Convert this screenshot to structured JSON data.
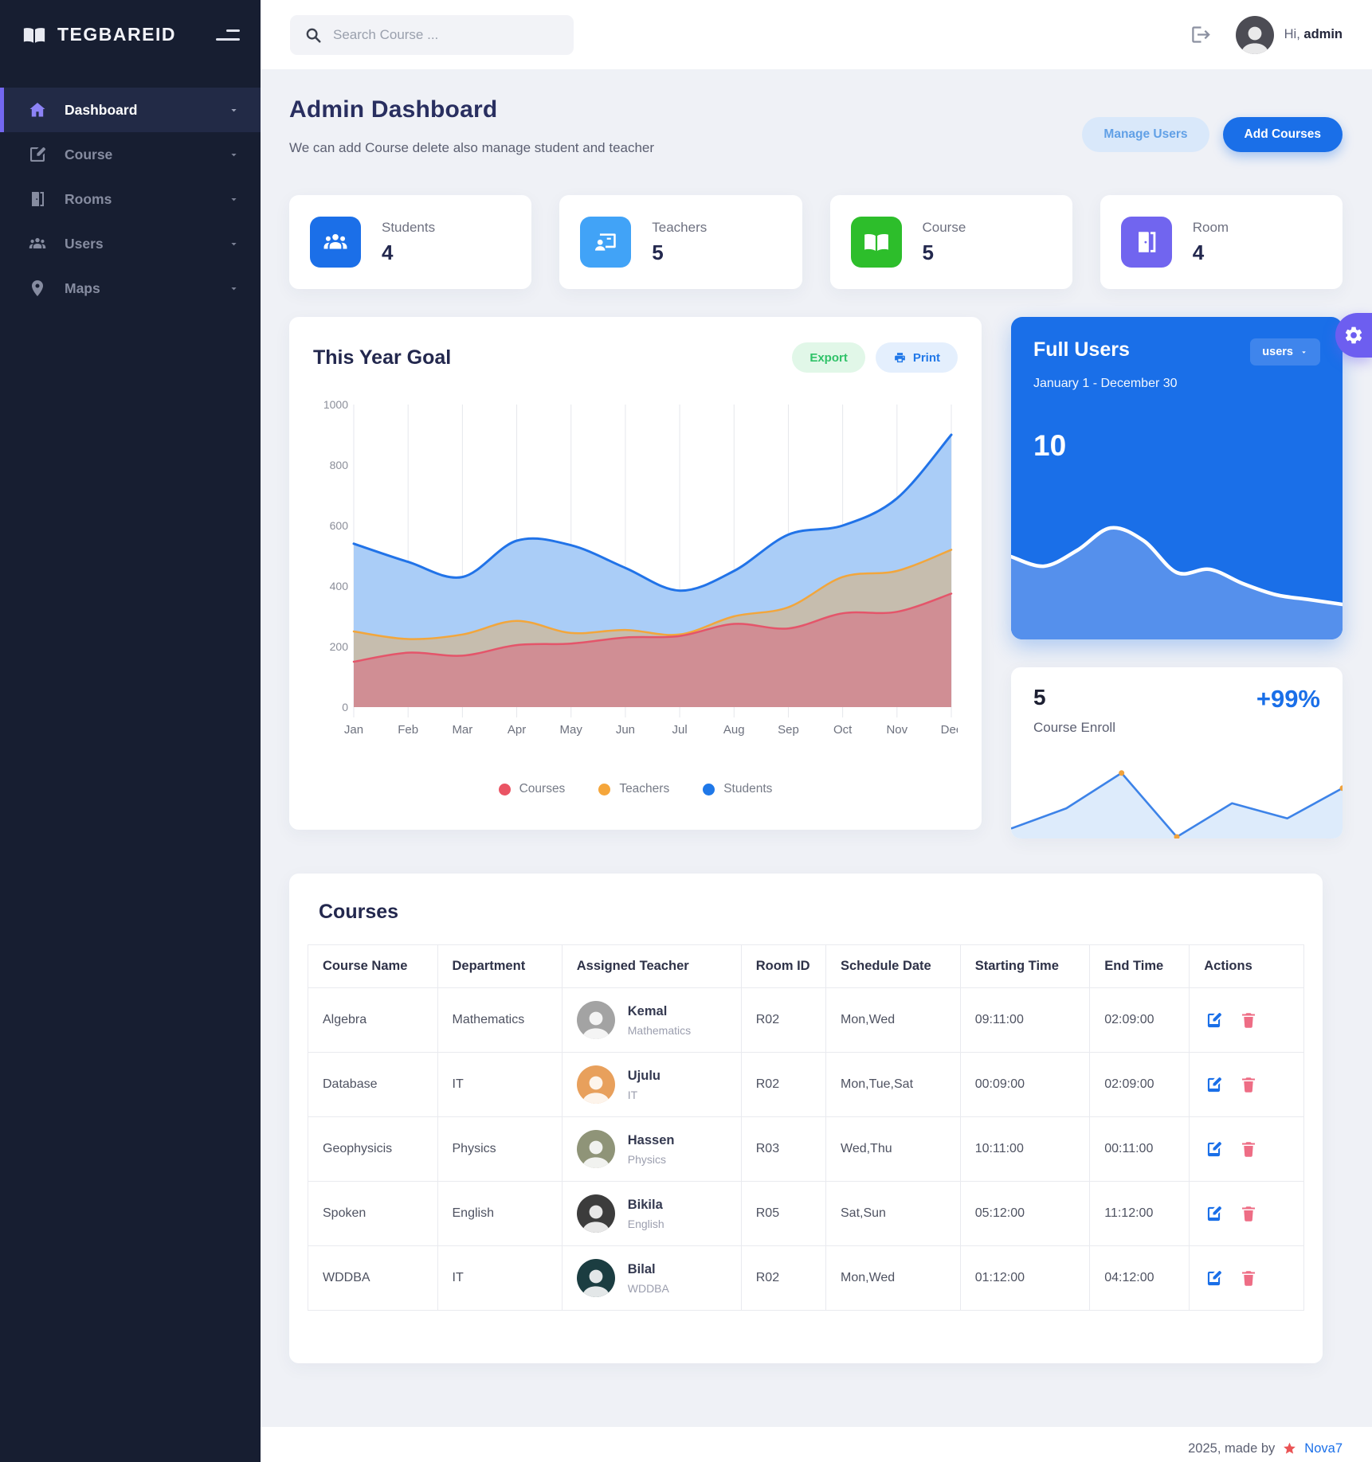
{
  "brand": {
    "name": "TEGBAREID"
  },
  "topbar": {
    "search_placeholder": "Search Course ...",
    "greeting_prefix": "Hi,",
    "username": "admin"
  },
  "sidebar": {
    "items": [
      {
        "label": "Dashboard",
        "icon": "home",
        "active": true
      },
      {
        "label": "Course",
        "icon": "pencil-square",
        "active": false
      },
      {
        "label": "Rooms",
        "icon": "door",
        "active": false
      },
      {
        "label": "Users",
        "icon": "users",
        "active": false
      },
      {
        "label": "Maps",
        "icon": "map-pin",
        "active": false
      }
    ]
  },
  "page": {
    "title": "Admin Dashboard",
    "subtitle": "We can add Course delete also manage student and teacher"
  },
  "actions": {
    "manage_users": "Manage Users",
    "add_courses": "Add Courses"
  },
  "stats": [
    {
      "label": "Students",
      "value": "4",
      "icon": "students",
      "color": "#1b6fe8"
    },
    {
      "label": "Teachers",
      "value": "5",
      "icon": "teacher-board",
      "color": "#41a3f7"
    },
    {
      "label": "Course",
      "value": "5",
      "icon": "book-open",
      "color": "#2dbe2b"
    },
    {
      "label": "Room",
      "value": "4",
      "icon": "door",
      "color": "#7165ef"
    }
  ],
  "goal_card": {
    "title": "This Year Goal",
    "export_label": "Export",
    "print_label": "Print"
  },
  "full_users_card": {
    "title": "Full Users",
    "dropdown_label": "users",
    "date_range": "January 1 - December 30",
    "value": "10"
  },
  "enroll_card": {
    "value": "5",
    "percent": "+99%",
    "label": "Course Enroll"
  },
  "courses_card": {
    "title": "Courses",
    "columns": [
      "Course Name",
      "Department",
      "Assigned Teacher",
      "Room ID",
      "Schedule Date",
      "Starting Time",
      "End Time",
      "Actions"
    ],
    "rows": [
      {
        "course": "Algebra",
        "department": "Mathematics",
        "teacher": {
          "name": "Kemal",
          "dept": "Mathematics",
          "avatar_color": "#a3a3a3"
        },
        "room": "R02",
        "schedule": "Mon,Wed",
        "start": "09:11:00",
        "end": "02:09:00"
      },
      {
        "course": "Database",
        "department": "IT",
        "teacher": {
          "name": "Ujulu",
          "dept": "IT",
          "avatar_color": "#e8a05c"
        },
        "room": "R02",
        "schedule": "Mon,Tue,Sat",
        "start": "00:09:00",
        "end": "02:09:00"
      },
      {
        "course": "Geophysicis",
        "department": "Physics",
        "teacher": {
          "name": "Hassen",
          "dept": "Physics",
          "avatar_color": "#8f9478"
        },
        "room": "R03",
        "schedule": "Wed,Thu",
        "start": "10:11:00",
        "end": "00:11:00"
      },
      {
        "course": "Spoken",
        "department": "English",
        "teacher": {
          "name": "Bikila",
          "dept": "English",
          "avatar_color": "#3c3c3c"
        },
        "room": "R05",
        "schedule": "Sat,Sun",
        "start": "05:12:00",
        "end": "11:12:00"
      },
      {
        "course": "WDDBA",
        "department": "IT",
        "teacher": {
          "name": "Bilal",
          "dept": "WDDBA",
          "avatar_color": "#1b3d41"
        },
        "room": "R02",
        "schedule": "Mon,Wed",
        "start": "01:12:00",
        "end": "04:12:00"
      }
    ]
  },
  "footer": {
    "text": "2025, made by",
    "brand": "Nova7"
  },
  "chart_data": [
    {
      "id": "this-year-goal",
      "type": "area",
      "title": "This Year Goal",
      "x": [
        "Jan",
        "Feb",
        "Mar",
        "Apr",
        "May",
        "Jun",
        "Jul",
        "Aug",
        "Sep",
        "Oct",
        "Nov",
        "Dec"
      ],
      "ylim": [
        0,
        1000
      ],
      "yticks": [
        0,
        200,
        400,
        600,
        800,
        1000
      ],
      "grid": "vertical-only",
      "legend_position": "bottom",
      "series": [
        {
          "name": "Courses",
          "line_color": "#e4556a",
          "fill_color": "#d08e94",
          "values": [
            150,
            180,
            170,
            205,
            210,
            230,
            235,
            275,
            260,
            310,
            315,
            375
          ]
        },
        {
          "name": "Teachers",
          "line_color": "#f2a63c",
          "fill_color": "#c6bdae",
          "values": [
            250,
            225,
            240,
            285,
            245,
            255,
            240,
            300,
            330,
            430,
            450,
            520
          ]
        },
        {
          "name": "Students",
          "line_color": "#2173e8",
          "fill_color": "#aacdf7",
          "values": [
            540,
            480,
            430,
            550,
            535,
            460,
            385,
            450,
            570,
            600,
            690,
            900
          ]
        }
      ],
      "legend": [
        {
          "name": "Courses",
          "color": "#ea5464"
        },
        {
          "name": "Teachers",
          "color": "#f5a63b"
        },
        {
          "name": "Students",
          "color": "#1f78e8"
        }
      ]
    },
    {
      "id": "full-users-trend",
      "type": "area",
      "title": "Full Users",
      "ylim": [
        0,
        100
      ],
      "line_color": "#ffffff",
      "fill_color": "#5590ec",
      "series": [
        {
          "name": "users",
          "values": [
            52,
            46,
            56,
            70,
            62,
            42,
            44,
            35,
            28,
            25,
            22
          ]
        }
      ]
    },
    {
      "id": "course-enroll-trend",
      "type": "line",
      "title": "Course Enroll",
      "ylim": [
        0,
        45
      ],
      "line_color": "#3d83e8",
      "fill_color": "#ddebfb",
      "marker_color": "#f0a23c",
      "markers_at": [
        2,
        3,
        6
      ],
      "series": [
        {
          "name": "enroll",
          "values": [
            5,
            17,
            38,
            0,
            20,
            11,
            29
          ]
        }
      ]
    }
  ]
}
